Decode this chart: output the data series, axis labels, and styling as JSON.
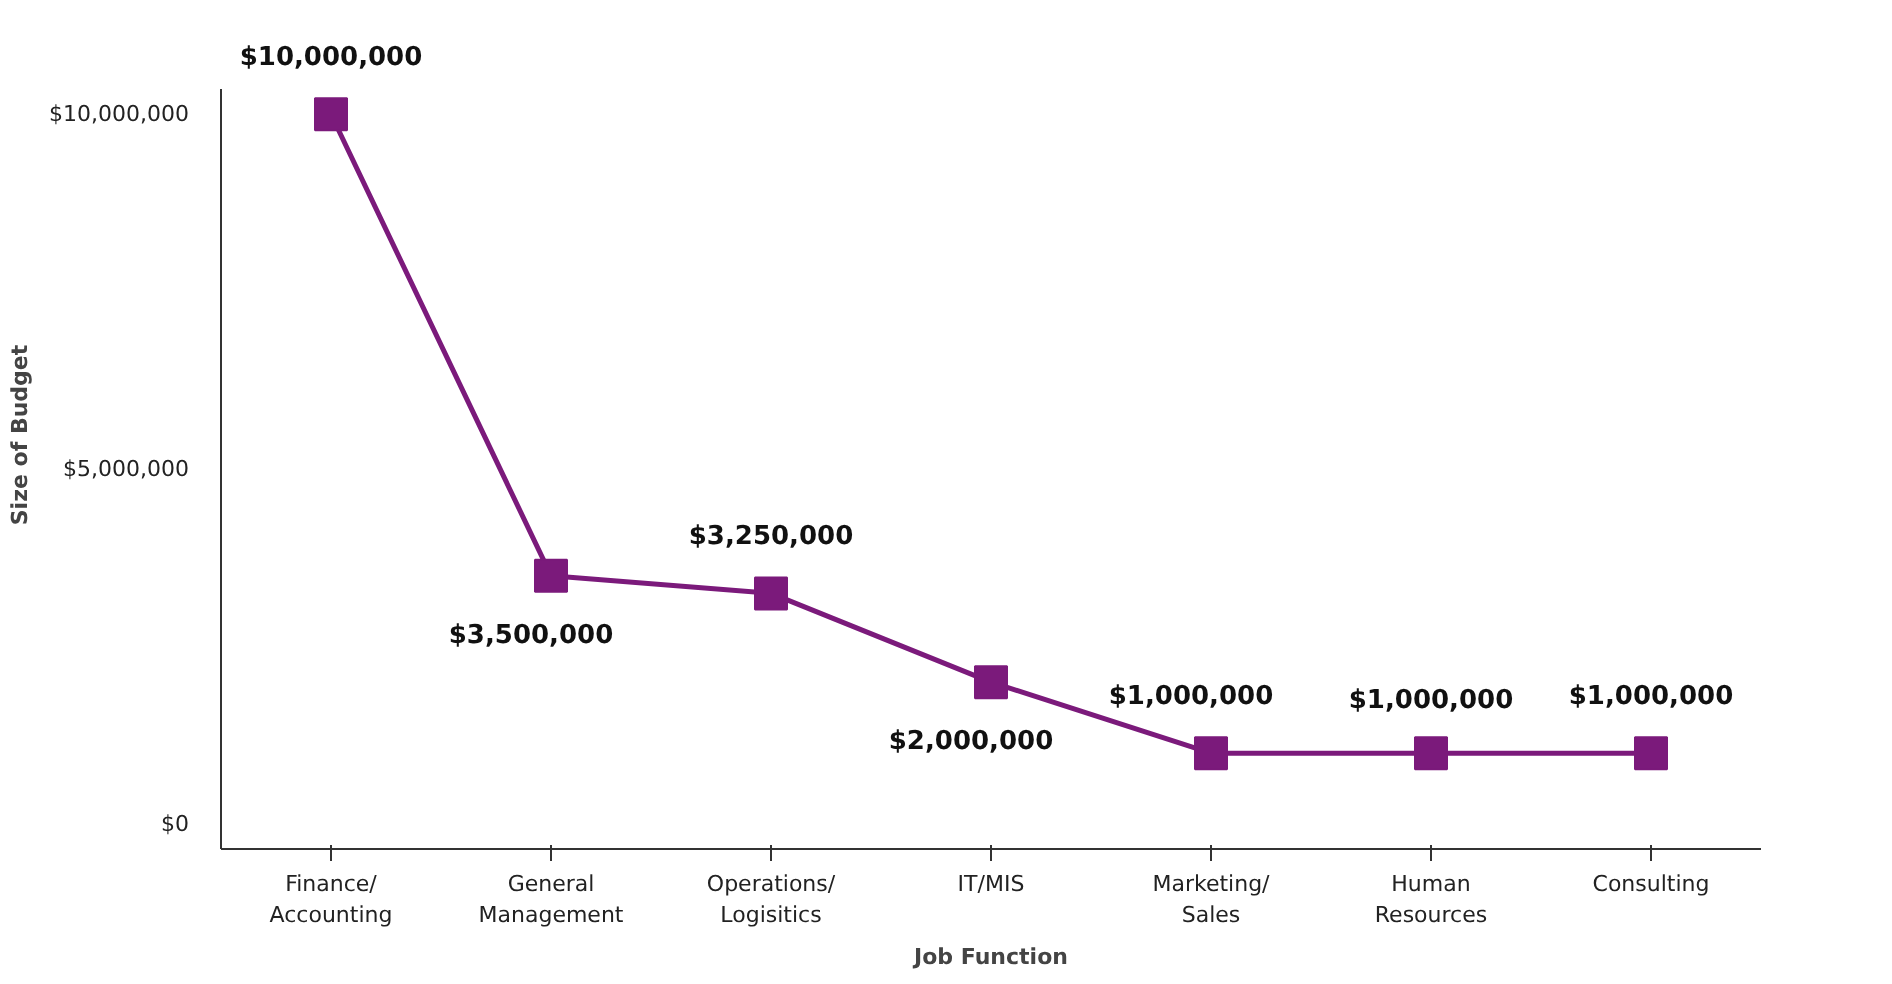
{
  "chart_data": {
    "type": "line",
    "xlabel": "Job Function",
    "ylabel": "Size of Budget",
    "categories": [
      "Finance/\nAccounting",
      "General\nManagement",
      "Operations/\nLogisitics",
      "IT/MIS",
      "Marketing/\nSales",
      "Human\nResources",
      "Consulting"
    ],
    "series": [
      {
        "color": "#7b1a7b",
        "values": [
          10000000,
          3500000,
          3250000,
          2000000,
          1000000,
          1000000,
          1000000
        ]
      }
    ],
    "value_labels": [
      "$10,000,000",
      "$3,500,000",
      "$3,250,000",
      "$2,000,000",
      "$1,000,000",
      "$1,000,000",
      "$1,000,000"
    ],
    "ylim": [
      -350000,
      10350000
    ],
    "yticks": [
      {
        "value": 0,
        "label": "$0"
      },
      {
        "value": 5000000,
        "label": "$5,000,000"
      },
      {
        "value": 10000000,
        "label": "$10,000,000"
      }
    ],
    "marker": "square",
    "line_style": "solid",
    "grid": false
  }
}
